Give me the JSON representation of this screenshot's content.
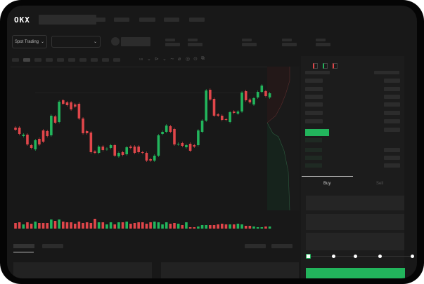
{
  "header": {
    "logo": "OKX",
    "market_selector": "Spot Trading"
  },
  "toolbar": {
    "icons": [
      "indicator-icon",
      "chevron-down-icon",
      "draw-icon",
      "chevron-down-icon",
      "line-icon",
      "ruler-icon",
      "camera-icon",
      "settings-icon",
      "fullscreen-icon"
    ]
  },
  "orderbook": {
    "view_icons": [
      "orderbook-both-icon",
      "orderbook-bids-icon",
      "orderbook-asks-icon"
    ]
  },
  "trade": {
    "buy_tab": "Buy",
    "sell_tab": "Sell"
  },
  "colors": {
    "up": "#22b55c",
    "down": "#e0464a",
    "background": "#181818"
  },
  "chart_data": {
    "type": "candlestick",
    "candles": [
      [
        118,
        115
      ],
      [
        118,
        109
      ],
      [
        106,
        108
      ],
      [
        108,
        94
      ],
      [
        93,
        89
      ],
      [
        87,
        100
      ],
      [
        102,
        94
      ],
      [
        114,
        98
      ],
      [
        113,
        106
      ],
      [
        107,
        135
      ],
      [
        134,
        125
      ],
      [
        126,
        155
      ],
      [
        157,
        152
      ],
      [
        154,
        150
      ],
      [
        154,
        144
      ],
      [
        151,
        148
      ],
      [
        152,
        131
      ],
      [
        131,
        110
      ],
      [
        113,
        110
      ],
      [
        111,
        83
      ],
      [
        84,
        82
      ],
      [
        82,
        91
      ],
      [
        91,
        86
      ],
      [
        87,
        88
      ],
      [
        89,
        93
      ],
      [
        93,
        78
      ],
      [
        77,
        82
      ],
      [
        83,
        79
      ],
      [
        80,
        90
      ],
      [
        91,
        89
      ],
      [
        91,
        82
      ],
      [
        91,
        83
      ],
      [
        83,
        82
      ],
      [
        82,
        71
      ],
      [
        73,
        71
      ],
      [
        71,
        78
      ],
      [
        78,
        107
      ],
      [
        109,
        112
      ],
      [
        112,
        121
      ],
      [
        120,
        112
      ],
      [
        116,
        94
      ],
      [
        94,
        95
      ],
      [
        96,
        92
      ],
      [
        90,
        93
      ],
      [
        95,
        85
      ],
      [
        93,
        91
      ],
      [
        93,
        114
      ],
      [
        112,
        128
      ],
      [
        128,
        171
      ],
      [
        172,
        158
      ],
      [
        159,
        135
      ],
      [
        137,
        135
      ],
      [
        135,
        129
      ],
      [
        130,
        129
      ],
      [
        126,
        140
      ],
      [
        141,
        139
      ],
      [
        138,
        141
      ],
      [
        141,
        168
      ],
      [
        170,
        157
      ],
      [
        158,
        154
      ],
      [
        151,
        160
      ],
      [
        161,
        169
      ],
      [
        169,
        178
      ],
      [
        170,
        163
      ],
      [
        161,
        167
      ]
    ],
    "volume": [
      8,
      9,
      6,
      9,
      7,
      10,
      8,
      8,
      8,
      13,
      11,
      13,
      10,
      9,
      9,
      7,
      10,
      8,
      9,
      8,
      14,
      9,
      9,
      6,
      9,
      6,
      9,
      9,
      10,
      7,
      8,
      9,
      9,
      7,
      9,
      10,
      9,
      6,
      9,
      7,
      8,
      7,
      5,
      9,
      2,
      2,
      3,
      5,
      5,
      5,
      5,
      6,
      7,
      6,
      6,
      6,
      7,
      6,
      4,
      4,
      3,
      2,
      2,
      3,
      3
    ]
  }
}
